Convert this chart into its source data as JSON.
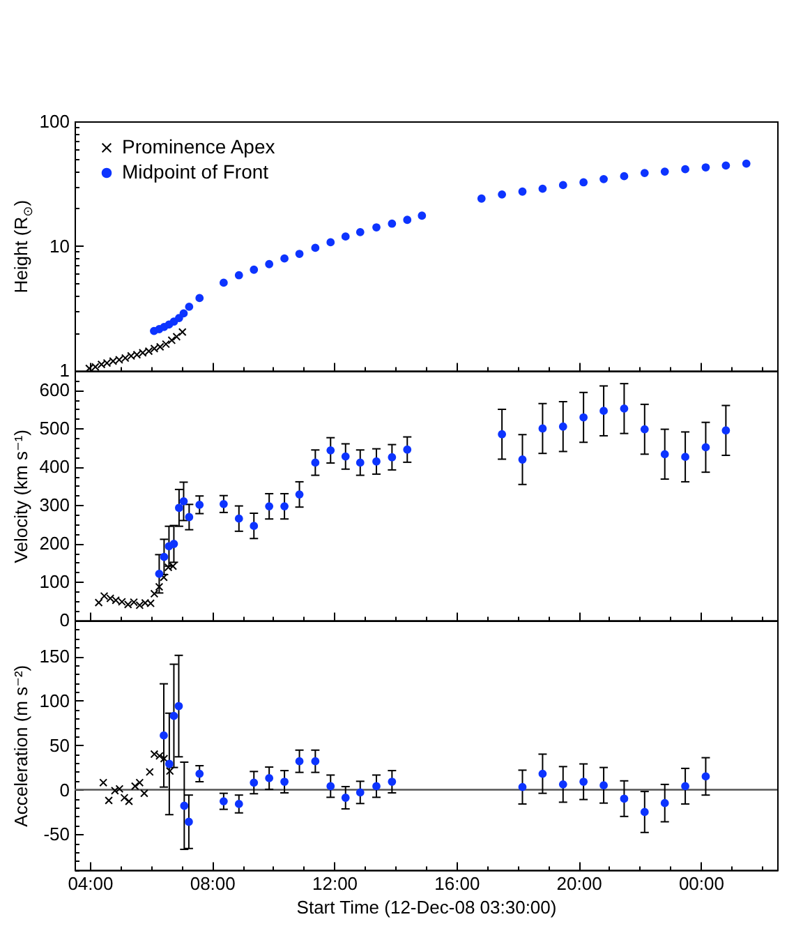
{
  "chart_data": [
    {
      "type": "scatter",
      "ylabel": "Height (R$_{⊙}$)",
      "xlim": [
        3.5,
        26.5
      ],
      "xticks": [
        {
          "value": 4,
          "label": null
        },
        {
          "value": 5,
          "label": null
        },
        {
          "value": 6,
          "label": null
        },
        {
          "value": 7,
          "label": null
        },
        {
          "value": 8,
          "label": null
        },
        {
          "value": 9,
          "label": null
        },
        {
          "value": 10,
          "label": null
        },
        {
          "value": 11,
          "label": null
        },
        {
          "value": 12,
          "label": null
        },
        {
          "value": 13,
          "label": null
        },
        {
          "value": 14,
          "label": null
        },
        {
          "value": 15,
          "label": null
        },
        {
          "value": 16,
          "label": null
        },
        {
          "value": 17,
          "label": null
        },
        {
          "value": 18,
          "label": null
        },
        {
          "value": 19,
          "label": null
        },
        {
          "value": 20,
          "label": null
        },
        {
          "value": 21,
          "label": null
        },
        {
          "value": 22,
          "label": null
        },
        {
          "value": 23,
          "label": null
        },
        {
          "value": 24,
          "label": null
        },
        {
          "value": 25,
          "label": null
        },
        {
          "value": 26,
          "label": null
        }
      ],
      "ylim": [
        1,
        100
      ],
      "yticks": [
        1,
        {
          "value": 2,
          "label": null
        },
        {
          "value": 3,
          "label": null
        },
        {
          "value": 4,
          "label": null
        },
        {
          "value": 5,
          "label": null
        },
        {
          "value": 6,
          "label": null
        },
        {
          "value": 7,
          "label": null
        },
        {
          "value": 8,
          "label": null
        },
        {
          "value": 9,
          "label": null
        },
        10,
        {
          "value": 20,
          "label": null
        },
        {
          "value": 30,
          "label": null
        },
        {
          "value": 40,
          "label": null
        },
        {
          "value": 50,
          "label": null
        },
        {
          "value": 60,
          "label": null
        },
        {
          "value": 70,
          "label": null
        },
        {
          "value": 80,
          "label": null
        },
        {
          "value": 90,
          "label": null
        },
        100
      ],
      "log": "y",
      "tick_labels": "y",
      "legend": "top left",
      "series": [
        {
          "name": "Prominence Apex",
          "color": "#000000",
          "marker": "cross",
          "x": [
            3.98,
            4.18,
            4.38,
            4.56,
            4.76,
            4.96,
            5.16,
            5.35,
            5.54,
            5.73,
            5.93,
            6.11,
            6.3,
            6.49,
            6.68,
            6.84,
            7.03
          ],
          "values": [
            1.04,
            1.07,
            1.12,
            1.15,
            1.19,
            1.22,
            1.26,
            1.31,
            1.34,
            1.39,
            1.43,
            1.5,
            1.55,
            1.63,
            1.75,
            1.87,
            2.04
          ]
        },
        {
          "name": "Midpoint of Front",
          "color": "#0d34ff",
          "marker": "circle",
          "x": [
            6.1,
            6.27,
            6.43,
            6.59,
            6.75,
            6.92,
            7.07,
            7.25,
            7.59,
            8.38,
            8.88,
            9.37,
            9.87,
            10.37,
            10.86,
            11.38,
            11.88,
            12.37,
            12.85,
            13.38,
            13.89,
            14.39,
            14.87,
            16.82,
            17.49,
            18.16,
            18.82,
            19.49,
            20.16,
            20.82,
            21.49,
            22.16,
            22.82,
            23.49,
            24.16,
            24.82,
            25.49
          ],
          "values": [
            2.08,
            2.15,
            2.24,
            2.34,
            2.47,
            2.64,
            2.88,
            3.25,
            3.82,
            5.07,
            5.82,
            6.45,
            7.15,
            7.93,
            8.64,
            9.66,
            10.7,
            11.9,
            12.9,
            14.1,
            15.1,
            16.2,
            17.5,
            24.0,
            25.9,
            27.3,
            28.8,
            30.8,
            32.4,
            34.4,
            36.3,
            38.5,
            39.5,
            41.3,
            42.7,
            44.2,
            45.8
          ]
        }
      ]
    },
    {
      "type": "scatter",
      "ylabel": "Velocity (km s⁻¹)",
      "xlim": [
        3.5,
        26.5
      ],
      "xticks": [
        {
          "value": 4,
          "label": null
        },
        {
          "value": 5,
          "label": null
        },
        {
          "value": 6,
          "label": null
        },
        {
          "value": 7,
          "label": null
        },
        {
          "value": 8,
          "label": null
        },
        {
          "value": 9,
          "label": null
        },
        {
          "value": 10,
          "label": null
        },
        {
          "value": 11,
          "label": null
        },
        {
          "value": 12,
          "label": null
        },
        {
          "value": 13,
          "label": null
        },
        {
          "value": 14,
          "label": null
        },
        {
          "value": 15,
          "label": null
        },
        {
          "value": 16,
          "label": null
        },
        {
          "value": 17,
          "label": null
        },
        {
          "value": 18,
          "label": null
        },
        {
          "value": 19,
          "label": null
        },
        {
          "value": 20,
          "label": null
        },
        {
          "value": 21,
          "label": null
        },
        {
          "value": 22,
          "label": null
        },
        {
          "value": 23,
          "label": null
        },
        {
          "value": 24,
          "label": null
        },
        {
          "value": 25,
          "label": null
        },
        {
          "value": 26,
          "label": null
        }
      ],
      "ylim": [
        0,
        650
      ],
      "yticks": [
        0,
        {
          "value": 25,
          "label": null
        },
        {
          "value": 50,
          "label": null
        },
        {
          "value": 75,
          "label": null
        },
        100,
        {
          "value": 125,
          "label": null
        },
        {
          "value": 150,
          "label": null
        },
        {
          "value": 175,
          "label": null
        },
        200,
        {
          "value": 225,
          "label": null
        },
        {
          "value": 250,
          "label": null
        },
        {
          "value": 275,
          "label": null
        },
        300,
        {
          "value": 325,
          "label": null
        },
        {
          "value": 350,
          "label": null
        },
        {
          "value": 375,
          "label": null
        },
        400,
        {
          "value": 425,
          "label": null
        },
        {
          "value": 450,
          "label": null
        },
        {
          "value": 475,
          "label": null
        },
        500,
        {
          "value": 525,
          "label": null
        },
        {
          "value": 550,
          "label": null
        },
        {
          "value": 575,
          "label": null
        },
        600,
        {
          "value": 625,
          "label": null
        }
      ],
      "tick_labels": "y",
      "series": [
        {
          "color": "#000000",
          "marker": "cross",
          "x": [
            4.29,
            4.47,
            4.67,
            4.85,
            5.05,
            5.25,
            5.44,
            5.63,
            5.81,
            5.99,
            6.11,
            6.27,
            6.42,
            6.57,
            6.72
          ],
          "values": [
            46,
            63,
            57,
            52,
            48,
            41,
            47,
            39,
            45,
            44,
            69,
            87,
            112,
            138,
            141
          ]
        },
        {
          "color": "#0d34ff",
          "marker": "circle",
          "x": [
            6.27,
            6.43,
            6.59,
            6.75,
            6.92,
            7.07,
            7.25,
            7.59,
            8.38,
            8.88,
            9.37,
            9.87,
            10.37,
            10.86,
            11.38,
            11.88,
            12.37,
            12.85,
            13.38,
            13.89,
            14.39,
            17.49,
            18.16,
            18.82,
            19.49,
            20.16,
            20.82,
            21.49,
            22.16,
            22.82,
            23.49,
            24.16,
            24.82
          ],
          "values": [
            121,
            165,
            193,
            199,
            293,
            310,
            269,
            301,
            303,
            265,
            246,
            297,
            297,
            328,
            411,
            443,
            427,
            411,
            414,
            425,
            445,
            485,
            419,
            500,
            505,
            529,
            546,
            552,
            498,
            433,
            426,
            451,
            495
          ],
          "errors": [
            50,
            46,
            52,
            48,
            48,
            50,
            33,
            23,
            22,
            33,
            33,
            33,
            33,
            33,
            33,
            33,
            33,
            33,
            33,
            33,
            33,
            65,
            65,
            65,
            65,
            65,
            65,
            65,
            65,
            65,
            65,
            65,
            65
          ]
        }
      ]
    },
    {
      "type": "scatter",
      "xlabel": "Start Time (12-Dec-08 03:30:00)",
      "ylabel": "Acceleration (m s⁻²)",
      "xlim": [
        3.5,
        26.5
      ],
      "xticks": [
        {
          "value": 4,
          "label": "04:00"
        },
        {
          "value": 5,
          "label": null
        },
        {
          "value": 6,
          "label": null
        },
        {
          "value": 7,
          "label": null
        },
        {
          "value": 8,
          "label": "08:00"
        },
        {
          "value": 9,
          "label": null
        },
        {
          "value": 10,
          "label": null
        },
        {
          "value": 11,
          "label": null
        },
        {
          "value": 12,
          "label": "12:00"
        },
        {
          "value": 13,
          "label": null
        },
        {
          "value": 14,
          "label": null
        },
        {
          "value": 15,
          "label": null
        },
        {
          "value": 16,
          "label": "16:00"
        },
        {
          "value": 17,
          "label": null
        },
        {
          "value": 18,
          "label": null
        },
        {
          "value": 19,
          "label": null
        },
        {
          "value": 20,
          "label": "20:00"
        },
        {
          "value": 21,
          "label": null
        },
        {
          "value": 22,
          "label": null
        },
        {
          "value": 23,
          "label": null
        },
        {
          "value": 24,
          "label": "00:00"
        },
        {
          "value": 25,
          "label": null
        },
        {
          "value": 26,
          "label": null
        }
      ],
      "ylim": [
        -90,
        190
      ],
      "yticks": [
        {
          "value": -90,
          "label": null
        },
        {
          "value": -80,
          "label": null
        },
        {
          "value": -70,
          "label": null
        },
        {
          "value": -60,
          "label": null
        },
        -50,
        {
          "value": -40,
          "label": null
        },
        {
          "value": -30,
          "label": null
        },
        {
          "value": -20,
          "label": null
        },
        {
          "value": -10,
          "label": null
        },
        0,
        {
          "value": 10,
          "label": null
        },
        {
          "value": 20,
          "label": null
        },
        {
          "value": 30,
          "label": null
        },
        {
          "value": 40,
          "label": null
        },
        50,
        {
          "value": 60,
          "label": null
        },
        {
          "value": 70,
          "label": null
        },
        {
          "value": 80,
          "label": null
        },
        {
          "value": 90,
          "label": null
        },
        100,
        {
          "value": 110,
          "label": null
        },
        {
          "value": 120,
          "label": null
        },
        {
          "value": 130,
          "label": null
        },
        {
          "value": 140,
          "label": null
        },
        150,
        {
          "value": 160,
          "label": null
        },
        {
          "value": 170,
          "label": null
        },
        {
          "value": 180,
          "label": null
        }
      ],
      "ref_lines": [
        {
          "axis": "y",
          "value": 0,
          "color": "#555555"
        }
      ],
      "series": [
        {
          "color": "#000000",
          "marker": "cross",
          "x": [
            4.44,
            4.62,
            4.82,
            4.97,
            5.13,
            5.28,
            5.48,
            5.63,
            5.78,
            5.96,
            6.11,
            6.28,
            6.43,
            6.62
          ],
          "values": [
            8,
            -12,
            -1,
            1,
            -9,
            -13,
            4,
            8,
            -4,
            20,
            40,
            38,
            35,
            21
          ]
        },
        {
          "color": "#0d34ff",
          "marker": "circle",
          "x": [
            6.42,
            6.6,
            6.75,
            6.91,
            7.09,
            7.24,
            7.59,
            8.38,
            8.88,
            9.37,
            9.87,
            10.37,
            10.86,
            11.38,
            11.88,
            12.37,
            12.85,
            13.38,
            13.89,
            18.16,
            18.82,
            19.49,
            20.16,
            20.82,
            21.49,
            22.16,
            22.82,
            23.49,
            24.16
          ],
          "values": [
            61,
            29,
            83,
            94,
            -18,
            -36,
            18,
            -13,
            -16,
            8,
            13,
            9,
            32,
            32,
            4,
            -9,
            -3,
            4,
            9,
            3,
            18,
            6,
            9,
            5,
            -10,
            -25,
            -15,
            4,
            15
          ],
          "errors": [
            58,
            57,
            58,
            57,
            49,
            30,
            9,
            9,
            10,
            12.5,
            12.5,
            12.5,
            12.5,
            12.5,
            12.5,
            12.5,
            12.5,
            12.5,
            12.5,
            19,
            22,
            20,
            20,
            20,
            20,
            23,
            21,
            20,
            21
          ]
        }
      ]
    }
  ]
}
